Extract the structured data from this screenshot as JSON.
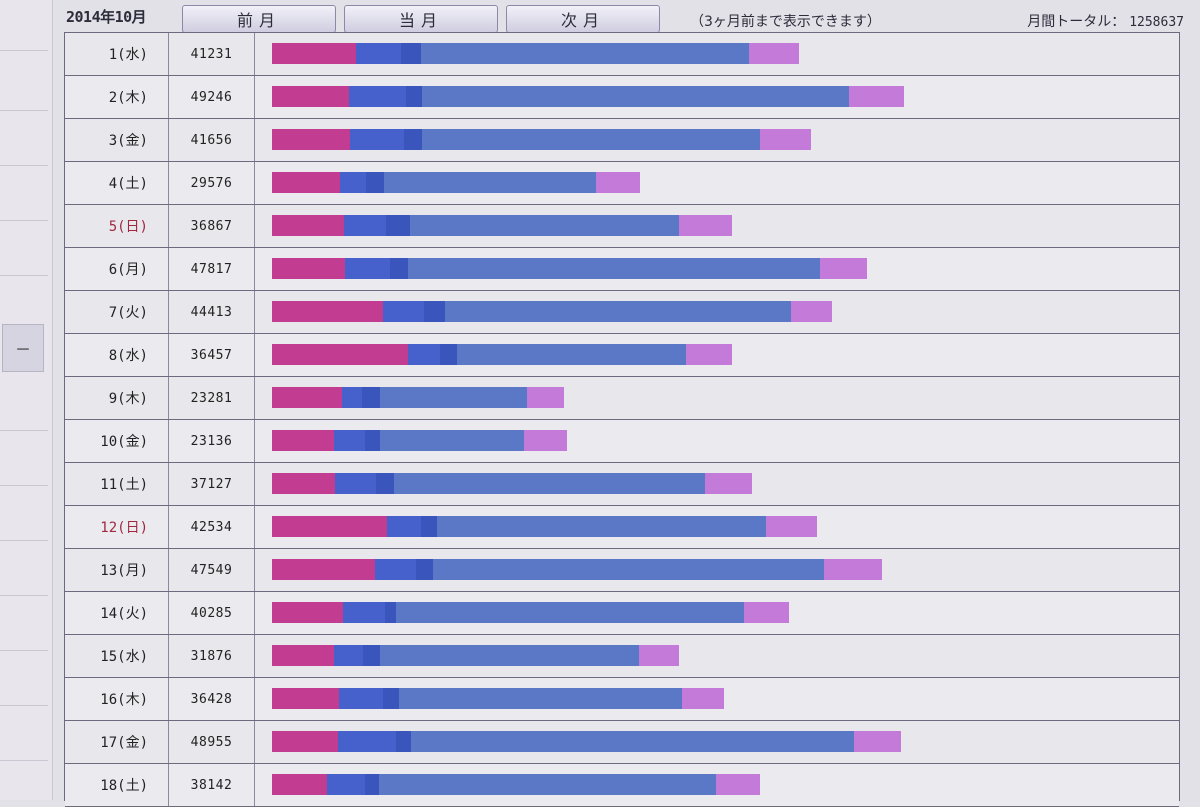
{
  "header": {
    "month": "2014年10月",
    "prev_label": "前月",
    "current_label": "当月",
    "next_label": "次月",
    "note": "（3ヶ月前まで表示できます）",
    "total_label": "月間トータル：",
    "total_value": "1258637"
  },
  "sidebar": {
    "collapse_label": "－"
  },
  "colors": {
    "seg1": "#c23c92",
    "seg2": "#4660cc",
    "seg3": "#3a55bb",
    "seg4": "#5a78c6",
    "seg5": "#c47ad8",
    "sunday_text": "#a12840"
  },
  "rows": [
    {
      "day": "1(水)",
      "count": "41231",
      "sunday": false,
      "segments": [
        7.4,
        4.0,
        1.8,
        29.0,
        4.4
      ]
    },
    {
      "day": "2(木)",
      "count": "49246",
      "sunday": false,
      "segments": [
        6.8,
        5.0,
        1.4,
        37.8,
        4.9
      ]
    },
    {
      "day": "3(金)",
      "count": "41656",
      "sunday": false,
      "segments": [
        6.9,
        4.8,
        1.6,
        29.9,
        4.5
      ]
    },
    {
      "day": "4(土)",
      "count": "29576",
      "sunday": false,
      "segments": [
        6.0,
        2.3,
        1.6,
        18.8,
        3.9
      ]
    },
    {
      "day": "5(日)",
      "count": "36867",
      "sunday": true,
      "segments": [
        6.4,
        3.7,
        2.1,
        23.8,
        4.7
      ]
    },
    {
      "day": "6(月)",
      "count": "47817",
      "sunday": false,
      "segments": [
        6.5,
        4.0,
        1.6,
        36.5,
        4.2
      ]
    },
    {
      "day": "7(火)",
      "count": "44413",
      "sunday": false,
      "segments": [
        9.8,
        3.6,
        1.9,
        30.6,
        3.6
      ]
    },
    {
      "day": "8(水)",
      "count": "36457",
      "sunday": false,
      "segments": [
        12.0,
        2.8,
        1.5,
        20.3,
        4.1
      ]
    },
    {
      "day": "9(木)",
      "count": "23281",
      "sunday": false,
      "segments": [
        6.2,
        1.8,
        1.6,
        13.0,
        3.3
      ]
    },
    {
      "day": "10(金)",
      "count": "23136",
      "sunday": false,
      "segments": [
        5.5,
        2.7,
        1.3,
        12.7,
        3.8
      ]
    },
    {
      "day": "11(土)",
      "count": "37127",
      "sunday": false,
      "segments": [
        5.6,
        3.6,
        1.6,
        27.5,
        4.2
      ]
    },
    {
      "day": "12(日)",
      "count": "42534",
      "sunday": true,
      "segments": [
        10.2,
        3.0,
        1.4,
        29.1,
        4.5
      ]
    },
    {
      "day": "13(月)",
      "count": "47549",
      "sunday": false,
      "segments": [
        9.1,
        3.6,
        1.5,
        34.6,
        5.1
      ]
    },
    {
      "day": "14(火)",
      "count": "40285",
      "sunday": false,
      "segments": [
        6.3,
        3.7,
        1.0,
        30.8,
        4.0
      ]
    },
    {
      "day": "15(水)",
      "count": "31876",
      "sunday": false,
      "segments": [
        5.5,
        2.6,
        1.5,
        22.9,
        3.5
      ]
    },
    {
      "day": "16(木)",
      "count": "36428",
      "sunday": false,
      "segments": [
        5.9,
        3.9,
        1.4,
        25.0,
        3.7
      ]
    },
    {
      "day": "17(金)",
      "count": "48955",
      "sunday": false,
      "segments": [
        5.8,
        5.1,
        1.3,
        39.2,
        4.2
      ]
    },
    {
      "day": "18(土)",
      "count": "38142",
      "sunday": false,
      "segments": [
        4.9,
        3.4,
        1.2,
        29.8,
        3.9
      ]
    }
  ]
}
